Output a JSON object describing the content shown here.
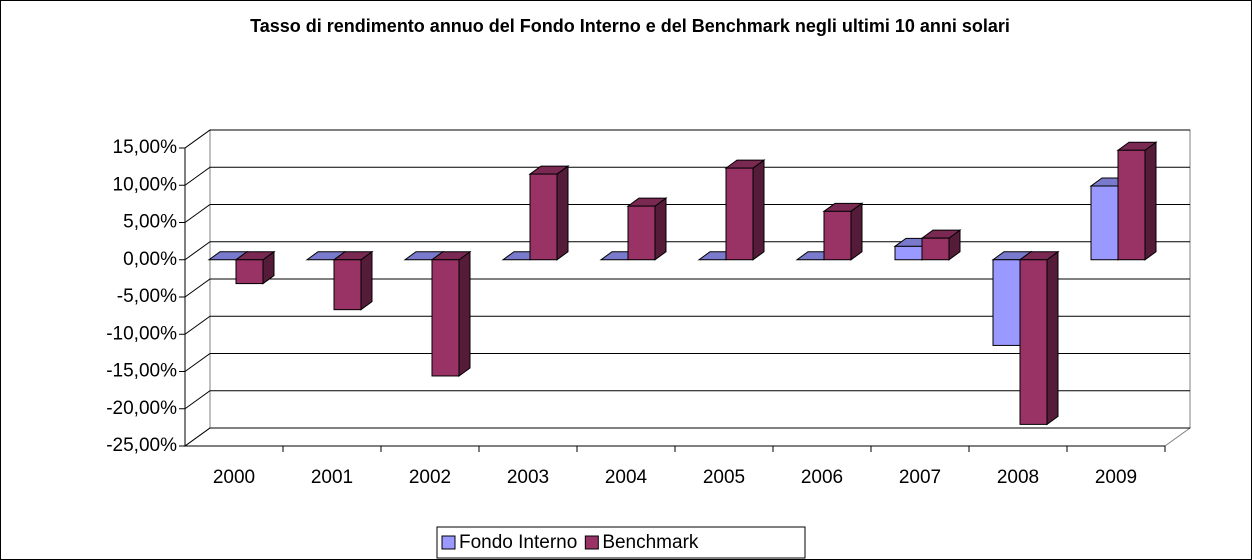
{
  "chart_data": {
    "type": "bar3d",
    "title": "Tasso di rendimento annuo del Fondo Interno e del Benchmark negli ultimi 10 anni solari",
    "categories": [
      "2000",
      "2001",
      "2002",
      "2003",
      "2004",
      "2005",
      "2006",
      "2007",
      "2008",
      "2009"
    ],
    "series": [
      {
        "name": "Fondo Interno",
        "color": "#9999ff",
        "values": [
          0,
          0,
          0,
          0,
          0,
          0,
          0,
          1.8,
          -11.5,
          9.9
        ]
      },
      {
        "name": "Benchmark",
        "color": "#993366",
        "values": [
          -3.2,
          -6.7,
          -15.6,
          11.5,
          7.2,
          12.3,
          6.5,
          2.9,
          -22.1,
          14.7
        ]
      }
    ],
    "ylim": [
      -25,
      15
    ],
    "yticks": [
      {
        "value": -25,
        "label": "-25,00%"
      },
      {
        "value": -20,
        "label": "-20,00%"
      },
      {
        "value": -15,
        "label": "-15,00%"
      },
      {
        "value": -10,
        "label": "-10,00%"
      },
      {
        "value": -5,
        "label": "-5,00%"
      },
      {
        "value": 0,
        "label": "0,00%"
      },
      {
        "value": 5,
        "label": "5,00%"
      },
      {
        "value": 10,
        "label": "10,00%"
      },
      {
        "value": 15,
        "label": "15,00%"
      }
    ],
    "grid": true,
    "legend": "bottom"
  }
}
